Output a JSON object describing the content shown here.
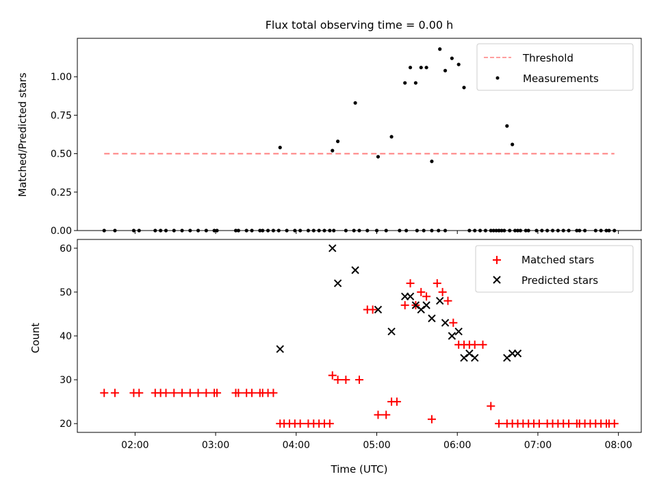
{
  "chart_data": [
    {
      "type": "scatter",
      "title": "Flux total observing time = 0.00 h",
      "ylabel": "Matched/Predicted stars",
      "xlabel": "",
      "xlim": [
        "01:17",
        "08:17"
      ],
      "ylim": [
        0,
        1.25
      ],
      "yticks": [
        "0.00",
        "0.25",
        "0.50",
        "0.75",
        "1.00"
      ],
      "xticks": [
        "02:00",
        "03:00",
        "04:00",
        "05:00",
        "06:00",
        "07:00",
        "08:00"
      ],
      "legend_position": "top-right",
      "threshold": {
        "name": "Threshold",
        "value": 0.5,
        "x_range": [
          "01:37",
          "07:57"
        ],
        "color": "#ff7f7f",
        "style": "dashed"
      },
      "series": [
        {
          "name": "Measurements",
          "color": "#000000",
          "marker": "dot",
          "x": [
            "01:37",
            "01:45",
            "01:59",
            "02:03",
            "02:15",
            "02:19",
            "02:23",
            "02:29",
            "02:35",
            "02:41",
            "02:47",
            "02:53",
            "02:59",
            "03:01",
            "03:15",
            "03:17",
            "03:23",
            "03:27",
            "03:33",
            "03:35",
            "03:39",
            "03:43",
            "03:47",
            "03:53",
            "03:59",
            "04:03",
            "04:09",
            "04:13",
            "04:17",
            "04:21",
            "04:25",
            "04:28",
            "04:37",
            "04:43",
            "04:47",
            "04:53",
            "05:00",
            "05:07",
            "05:17",
            "05:22",
            "05:30",
            "05:35",
            "05:41",
            "05:46",
            "05:51",
            "06:17",
            "06:21",
            "06:25",
            "06:29",
            "06:31",
            "06:35",
            "06:39",
            "06:43",
            "06:47",
            "06:51",
            "06:53",
            "06:59",
            "07:03",
            "07:07",
            "07:11",
            "07:15",
            "07:19",
            "07:23",
            "07:29",
            "07:31",
            "07:35",
            "07:43",
            "07:47",
            "07:51",
            "07:53",
            "07:57",
            "03:48",
            "04:27",
            "04:31",
            "04:44",
            "05:01",
            "05:11",
            "05:21",
            "05:25",
            "05:29",
            "05:33",
            "05:37",
            "05:41",
            "05:47",
            "05:51",
            "05:56",
            "06:01",
            "06:05",
            "06:09",
            "06:13",
            "06:27",
            "06:31",
            "06:33",
            "06:37",
            "06:41",
            "06:45"
          ],
          "y": [
            0,
            0,
            0,
            0,
            0,
            0,
            0,
            0,
            0,
            0,
            0,
            0,
            0,
            0,
            0,
            0,
            0,
            0,
            0,
            0,
            0,
            0,
            0,
            0,
            0,
            0,
            0,
            0,
            0,
            0,
            0,
            0,
            0,
            0,
            0,
            0,
            0,
            0,
            0,
            0,
            0,
            0,
            0,
            0,
            0,
            0,
            0,
            0,
            0,
            0,
            0,
            0,
            0,
            0,
            0,
            0,
            0,
            0,
            0,
            0,
            0,
            0,
            0,
            0,
            0,
            0,
            0,
            0,
            0,
            0,
            0,
            0.54,
            0.52,
            0.58,
            0.83,
            0.48,
            0.61,
            0.96,
            1.06,
            0.96,
            1.06,
            1.06,
            0.45,
            1.18,
            1.04,
            1.12,
            1.08,
            0.93,
            0,
            0,
            0,
            0,
            0,
            0.68,
            0.56,
            0
          ]
        }
      ]
    },
    {
      "type": "scatter",
      "title": "",
      "xlabel": "Time (UTC)",
      "ylabel": "Count",
      "xlim": [
        "01:17",
        "08:17"
      ],
      "ylim": [
        18,
        62
      ],
      "yticks": [
        "20",
        "30",
        "40",
        "50",
        "60"
      ],
      "xticks": [
        "02:00",
        "03:00",
        "04:00",
        "05:00",
        "06:00",
        "07:00",
        "08:00"
      ],
      "legend_position": "top-right",
      "series": [
        {
          "name": "Matched stars",
          "color": "#ff0000",
          "marker": "plus",
          "x": [
            "01:37",
            "01:45",
            "01:59",
            "02:03",
            "02:15",
            "02:19",
            "02:23",
            "02:29",
            "02:35",
            "02:41",
            "02:47",
            "02:53",
            "02:59",
            "03:01",
            "03:15",
            "03:17",
            "03:23",
            "03:27",
            "03:33",
            "03:35",
            "03:39",
            "03:43",
            "03:48",
            "03:51",
            "03:55",
            "03:59",
            "04:03",
            "04:09",
            "04:13",
            "04:17",
            "04:21",
            "04:25",
            "04:27",
            "04:31",
            "04:37",
            "04:47",
            "04:53",
            "04:57",
            "05:01",
            "05:07",
            "05:11",
            "05:15",
            "05:21",
            "05:25",
            "05:29",
            "05:33",
            "05:37",
            "05:41",
            "05:45",
            "05:49",
            "05:53",
            "05:57",
            "06:01",
            "06:05",
            "06:09",
            "06:13",
            "06:19",
            "06:25",
            "06:31",
            "06:37",
            "06:41",
            "06:45",
            "06:49",
            "06:53",
            "06:57",
            "07:01",
            "07:07",
            "07:11",
            "07:15",
            "07:19",
            "07:23",
            "07:29",
            "07:31",
            "07:35",
            "07:39",
            "07:43",
            "07:47",
            "07:51",
            "07:53",
            "07:57"
          ],
          "y": [
            27,
            27,
            27,
            27,
            27,
            27,
            27,
            27,
            27,
            27,
            27,
            27,
            27,
            27,
            27,
            27,
            27,
            27,
            27,
            27,
            27,
            27,
            20,
            20,
            20,
            20,
            20,
            20,
            20,
            20,
            20,
            20,
            31,
            30,
            30,
            30,
            46,
            46,
            22,
            22,
            25,
            25,
            47,
            52,
            47,
            50,
            49,
            21,
            52,
            50,
            48,
            43,
            38,
            38,
            38,
            38,
            38,
            24,
            20,
            20,
            20,
            20,
            20,
            20,
            20,
            20,
            20,
            20,
            20,
            20,
            20,
            20,
            20,
            20,
            20,
            20,
            20,
            20,
            20,
            20
          ]
        },
        {
          "name": "Predicted stars",
          "color": "#000000",
          "marker": "x",
          "x": [
            "03:48",
            "04:27",
            "04:31",
            "04:44",
            "05:01",
            "05:11",
            "05:21",
            "05:25",
            "05:29",
            "05:33",
            "05:37",
            "05:41",
            "05:47",
            "05:51",
            "05:56",
            "06:01",
            "06:05",
            "06:09",
            "06:13",
            "06:37",
            "06:41",
            "06:45"
          ],
          "y": [
            37,
            60,
            52,
            55,
            46,
            41,
            49,
            49,
            47,
            46,
            47,
            44,
            48,
            43,
            40,
            41,
            35,
            36,
            35,
            35,
            36,
            36
          ]
        }
      ]
    }
  ]
}
